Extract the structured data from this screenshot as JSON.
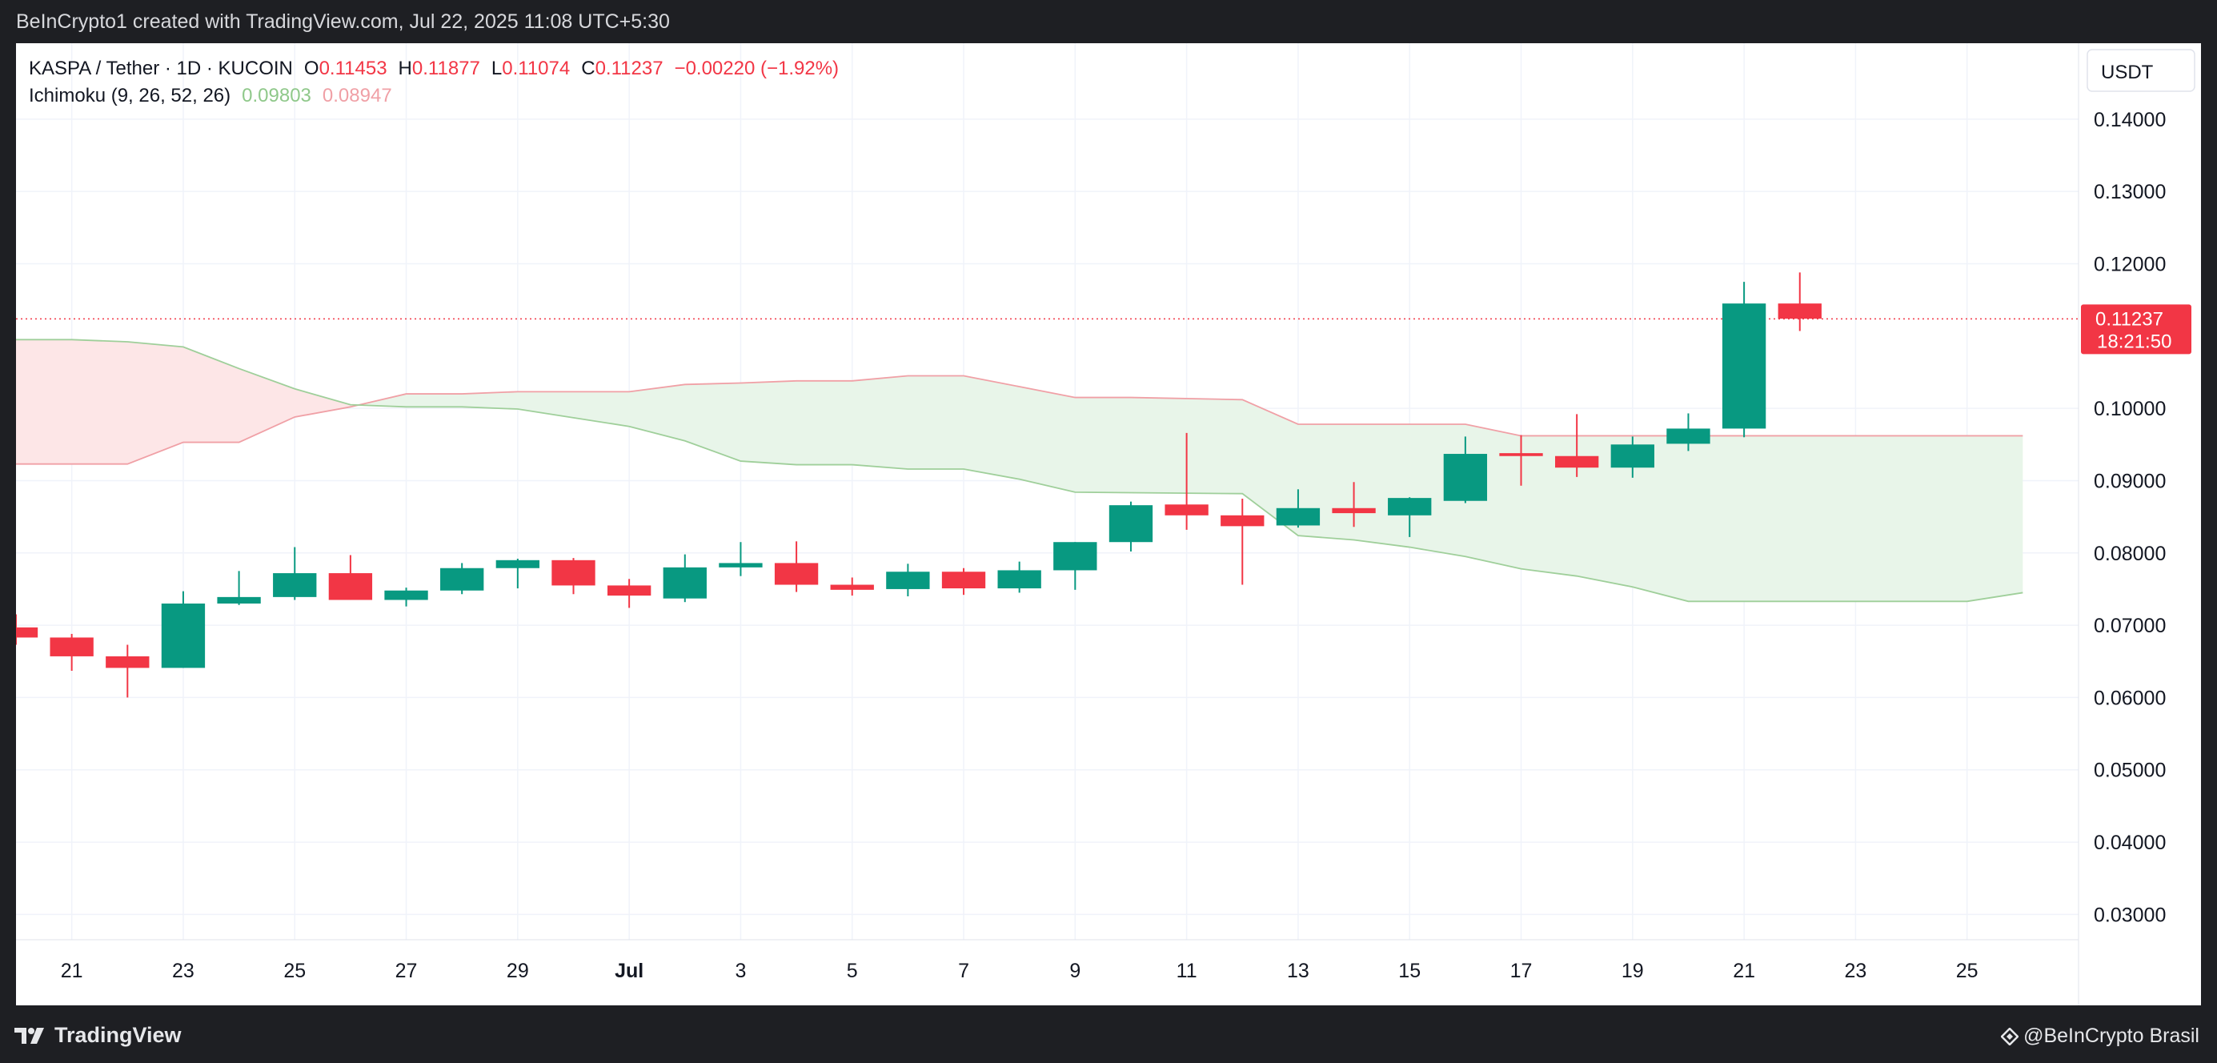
{
  "header": {
    "attribution": "BeInCrypto1 created with TradingView.com, Jul 22, 2025 11:08 UTC+5:30"
  },
  "footer": {
    "logo_text": "TradingView",
    "brand": "@BeInCrypto Brasil"
  },
  "legend": {
    "symbol": "KASPA / Tether · 1D · KUCOIN",
    "o_label": "O",
    "o_value": "0.11453",
    "h_label": "H",
    "h_value": "0.11877",
    "l_label": "L",
    "l_value": "0.11074",
    "c_label": "C",
    "c_value": "0.11237",
    "change": "−0.00220 (−1.92%)",
    "indicator": "Ichimoku (9, 26, 52, 26)",
    "ind_value1": "0.09803",
    "ind_value2": "0.08947"
  },
  "price_axis": {
    "currency": "USDT",
    "last_price": "0.11237",
    "countdown": "18:21:50"
  },
  "colors": {
    "up": "#089981",
    "down": "#f23645",
    "cloud_bull": "#e8f5e9",
    "cloud_bear": "#fde6e7",
    "span_a": "#f0a0a6",
    "span_b": "#9fcf9a"
  },
  "chart_data": {
    "type": "candlestick",
    "ylim": [
      0.0265,
      0.1505
    ],
    "y_ticks": [
      "0.14000",
      "0.13000",
      "0.12000",
      "0.10000",
      "0.09000",
      "0.08000",
      "0.07000",
      "0.06000",
      "0.05000",
      "0.04000",
      "0.03000"
    ],
    "x_ticks": [
      {
        "date": "2025-06-21",
        "label": "21"
      },
      {
        "date": "2025-06-23",
        "label": "23"
      },
      {
        "date": "2025-06-25",
        "label": "25"
      },
      {
        "date": "2025-06-27",
        "label": "27"
      },
      {
        "date": "2025-06-29",
        "label": "29"
      },
      {
        "date": "2025-07-01",
        "label": "Jul"
      },
      {
        "date": "2025-07-03",
        "label": "3"
      },
      {
        "date": "2025-07-05",
        "label": "5"
      },
      {
        "date": "2025-07-07",
        "label": "7"
      },
      {
        "date": "2025-07-09",
        "label": "9"
      },
      {
        "date": "2025-07-11",
        "label": "11"
      },
      {
        "date": "2025-07-13",
        "label": "13"
      },
      {
        "date": "2025-07-15",
        "label": "15"
      },
      {
        "date": "2025-07-17",
        "label": "17"
      },
      {
        "date": "2025-07-19",
        "label": "19"
      },
      {
        "date": "2025-07-21",
        "label": "21"
      },
      {
        "date": "2025-07-23",
        "label": "23"
      },
      {
        "date": "2025-07-25",
        "label": "25"
      }
    ],
    "date_range": [
      "2025-06-20",
      "2025-07-26"
    ],
    "candles": [
      {
        "date": "2025-06-20",
        "o": 0.0697,
        "h": 0.0715,
        "l": 0.0673,
        "c": 0.0683
      },
      {
        "date": "2025-06-21",
        "o": 0.0683,
        "h": 0.0688,
        "l": 0.0637,
        "c": 0.0657
      },
      {
        "date": "2025-06-22",
        "o": 0.0657,
        "h": 0.0673,
        "l": 0.06,
        "c": 0.0641
      },
      {
        "date": "2025-06-23",
        "o": 0.0641,
        "h": 0.0747,
        "l": 0.0641,
        "c": 0.073
      },
      {
        "date": "2025-06-24",
        "o": 0.073,
        "h": 0.0775,
        "l": 0.0728,
        "c": 0.0739
      },
      {
        "date": "2025-06-25",
        "o": 0.0739,
        "h": 0.0808,
        "l": 0.0735,
        "c": 0.0772
      },
      {
        "date": "2025-06-26",
        "o": 0.0772,
        "h": 0.0797,
        "l": 0.0735,
        "c": 0.0735
      },
      {
        "date": "2025-06-27",
        "o": 0.0735,
        "h": 0.0752,
        "l": 0.0726,
        "c": 0.0748
      },
      {
        "date": "2025-06-28",
        "o": 0.0748,
        "h": 0.0786,
        "l": 0.0743,
        "c": 0.0779
      },
      {
        "date": "2025-06-29",
        "o": 0.0779,
        "h": 0.0792,
        "l": 0.0751,
        "c": 0.079
      },
      {
        "date": "2025-06-30",
        "o": 0.079,
        "h": 0.0793,
        "l": 0.0743,
        "c": 0.0755
      },
      {
        "date": "2025-07-01",
        "o": 0.0755,
        "h": 0.0764,
        "l": 0.0724,
        "c": 0.0741
      },
      {
        "date": "2025-07-02",
        "o": 0.0737,
        "h": 0.0798,
        "l": 0.0732,
        "c": 0.078
      },
      {
        "date": "2025-07-03",
        "o": 0.078,
        "h": 0.0815,
        "l": 0.0768,
        "c": 0.0786
      },
      {
        "date": "2025-07-04",
        "o": 0.0786,
        "h": 0.0816,
        "l": 0.0746,
        "c": 0.0756
      },
      {
        "date": "2025-07-05",
        "o": 0.0756,
        "h": 0.0766,
        "l": 0.0741,
        "c": 0.0749
      },
      {
        "date": "2025-07-06",
        "o": 0.075,
        "h": 0.0785,
        "l": 0.074,
        "c": 0.0774
      },
      {
        "date": "2025-07-07",
        "o": 0.0774,
        "h": 0.0779,
        "l": 0.0742,
        "c": 0.0751
      },
      {
        "date": "2025-07-08",
        "o": 0.0751,
        "h": 0.0788,
        "l": 0.0745,
        "c": 0.0776
      },
      {
        "date": "2025-07-09",
        "o": 0.0776,
        "h": 0.0815,
        "l": 0.0749,
        "c": 0.0815
      },
      {
        "date": "2025-07-10",
        "o": 0.0815,
        "h": 0.0871,
        "l": 0.0802,
        "c": 0.0866
      },
      {
        "date": "2025-07-11",
        "o": 0.0867,
        "h": 0.0966,
        "l": 0.0832,
        "c": 0.0852
      },
      {
        "date": "2025-07-12",
        "o": 0.0852,
        "h": 0.0875,
        "l": 0.0756,
        "c": 0.0837
      },
      {
        "date": "2025-07-13",
        "o": 0.0838,
        "h": 0.0888,
        "l": 0.0835,
        "c": 0.0862
      },
      {
        "date": "2025-07-14",
        "o": 0.0862,
        "h": 0.0898,
        "l": 0.0836,
        "c": 0.0855
      },
      {
        "date": "2025-07-15",
        "o": 0.0852,
        "h": 0.0877,
        "l": 0.0822,
        "c": 0.0876
      },
      {
        "date": "2025-07-16",
        "o": 0.0872,
        "h": 0.0961,
        "l": 0.0869,
        "c": 0.0937
      },
      {
        "date": "2025-07-17",
        "o": 0.0938,
        "h": 0.0963,
        "l": 0.0893,
        "c": 0.0934
      },
      {
        "date": "2025-07-18",
        "o": 0.0934,
        "h": 0.0992,
        "l": 0.0905,
        "c": 0.0918
      },
      {
        "date": "2025-07-19",
        "o": 0.0918,
        "h": 0.0961,
        "l": 0.0904,
        "c": 0.095
      },
      {
        "date": "2025-07-20",
        "o": 0.0951,
        "h": 0.0993,
        "l": 0.0941,
        "c": 0.0972
      },
      {
        "date": "2025-07-21",
        "o": 0.0972,
        "h": 0.1175,
        "l": 0.096,
        "c": 0.1145
      },
      {
        "date": "2025-07-22",
        "o": 0.1145,
        "h": 0.1188,
        "l": 0.1107,
        "c": 0.1124
      }
    ],
    "ichimoku": {
      "span_a": [
        {
          "date": "2025-06-20",
          "v": 0.0923
        },
        {
          "date": "2025-06-22",
          "v": 0.0923
        },
        {
          "date": "2025-06-23",
          "v": 0.0953
        },
        {
          "date": "2025-06-24",
          "v": 0.0953
        },
        {
          "date": "2025-06-25",
          "v": 0.0988
        },
        {
          "date": "2025-06-26",
          "v": 0.1002
        },
        {
          "date": "2025-06-27",
          "v": 0.102
        },
        {
          "date": "2025-06-28",
          "v": 0.102
        },
        {
          "date": "2025-06-29",
          "v": 0.1023
        },
        {
          "date": "2025-07-01",
          "v": 0.1023
        },
        {
          "date": "2025-07-02",
          "v": 0.1033
        },
        {
          "date": "2025-07-03",
          "v": 0.1035
        },
        {
          "date": "2025-07-04",
          "v": 0.1038
        },
        {
          "date": "2025-07-05",
          "v": 0.1038
        },
        {
          "date": "2025-07-06",
          "v": 0.1045
        },
        {
          "date": "2025-07-07",
          "v": 0.1045
        },
        {
          "date": "2025-07-08",
          "v": 0.103
        },
        {
          "date": "2025-07-09",
          "v": 0.1015
        },
        {
          "date": "2025-07-10",
          "v": 0.1015
        },
        {
          "date": "2025-07-12",
          "v": 0.1012
        },
        {
          "date": "2025-07-13",
          "v": 0.0978
        },
        {
          "date": "2025-07-16",
          "v": 0.0978
        },
        {
          "date": "2025-07-17",
          "v": 0.0962
        },
        {
          "date": "2025-07-26",
          "v": 0.0962
        }
      ],
      "span_b": [
        {
          "date": "2025-06-20",
          "v": 0.1095
        },
        {
          "date": "2025-06-21",
          "v": 0.1095
        },
        {
          "date": "2025-06-22",
          "v": 0.1092
        },
        {
          "date": "2025-06-23",
          "v": 0.1085
        },
        {
          "date": "2025-06-24",
          "v": 0.1055
        },
        {
          "date": "2025-06-25",
          "v": 0.1027
        },
        {
          "date": "2025-06-26",
          "v": 0.1005
        },
        {
          "date": "2025-06-27",
          "v": 0.1002
        },
        {
          "date": "2025-06-28",
          "v": 0.1002
        },
        {
          "date": "2025-06-29",
          "v": 0.0999
        },
        {
          "date": "2025-06-30",
          "v": 0.0987
        },
        {
          "date": "2025-07-01",
          "v": 0.0975
        },
        {
          "date": "2025-07-02",
          "v": 0.0955
        },
        {
          "date": "2025-07-03",
          "v": 0.0927
        },
        {
          "date": "2025-07-04",
          "v": 0.0922
        },
        {
          "date": "2025-07-05",
          "v": 0.0922
        },
        {
          "date": "2025-07-06",
          "v": 0.0916
        },
        {
          "date": "2025-07-07",
          "v": 0.0916
        },
        {
          "date": "2025-07-08",
          "v": 0.0902
        },
        {
          "date": "2025-07-09",
          "v": 0.0884
        },
        {
          "date": "2025-07-12",
          "v": 0.0882
        },
        {
          "date": "2025-07-13",
          "v": 0.0824
        },
        {
          "date": "2025-07-14",
          "v": 0.0818
        },
        {
          "date": "2025-07-15",
          "v": 0.0808
        },
        {
          "date": "2025-07-16",
          "v": 0.0795
        },
        {
          "date": "2025-07-17",
          "v": 0.0778
        },
        {
          "date": "2025-07-18",
          "v": 0.0768
        },
        {
          "date": "2025-07-19",
          "v": 0.0753
        },
        {
          "date": "2025-07-20",
          "v": 0.0733
        },
        {
          "date": "2025-07-25",
          "v": 0.0733
        },
        {
          "date": "2025-07-26",
          "v": 0.0745
        }
      ]
    }
  }
}
